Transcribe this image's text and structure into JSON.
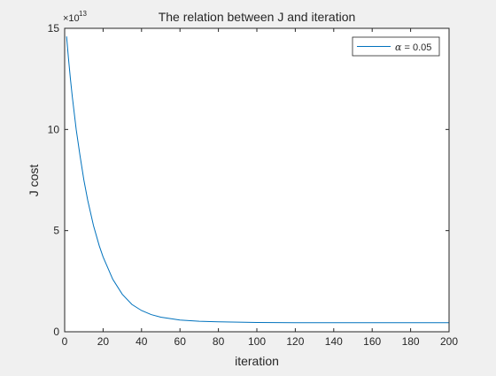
{
  "chart_data": {
    "type": "line",
    "title": "The relation between J and iteration",
    "xlabel": "iteration",
    "ylabel": "J cost",
    "exponent_label": {
      "base": "×10",
      "power": "13"
    },
    "xlim": [
      0,
      200
    ],
    "ylim": [
      0,
      15
    ],
    "xticks": [
      0,
      20,
      40,
      60,
      80,
      100,
      120,
      140,
      160,
      180,
      200
    ],
    "yticks": [
      0,
      5,
      10,
      15
    ],
    "grid": false,
    "legend": {
      "position": "top-right",
      "symbol": "α",
      "text": " = 0.05"
    },
    "series": [
      {
        "name": "α = 0.05",
        "color": "#0072BD",
        "x": [
          1,
          2,
          3,
          4,
          5,
          6,
          8,
          10,
          12,
          15,
          18,
          20,
          25,
          30,
          35,
          40,
          45,
          50,
          60,
          70,
          80,
          100,
          120,
          140,
          160,
          180,
          200
        ],
        "y": [
          14.6,
          13.5,
          12.5,
          11.6,
          10.8,
          10.0,
          8.7,
          7.5,
          6.5,
          5.25,
          4.25,
          3.7,
          2.6,
          1.85,
          1.35,
          1.05,
          0.85,
          0.72,
          0.58,
          0.52,
          0.49,
          0.46,
          0.45,
          0.45,
          0.45,
          0.45,
          0.45
        ]
      }
    ]
  }
}
